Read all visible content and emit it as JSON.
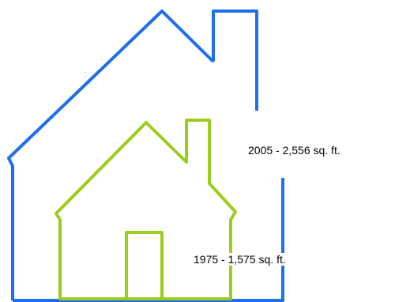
{
  "labels": [
    "2005 - 2,556 sq. ft.",
    "1975 - 1,575 sq. ft."
  ]
}
